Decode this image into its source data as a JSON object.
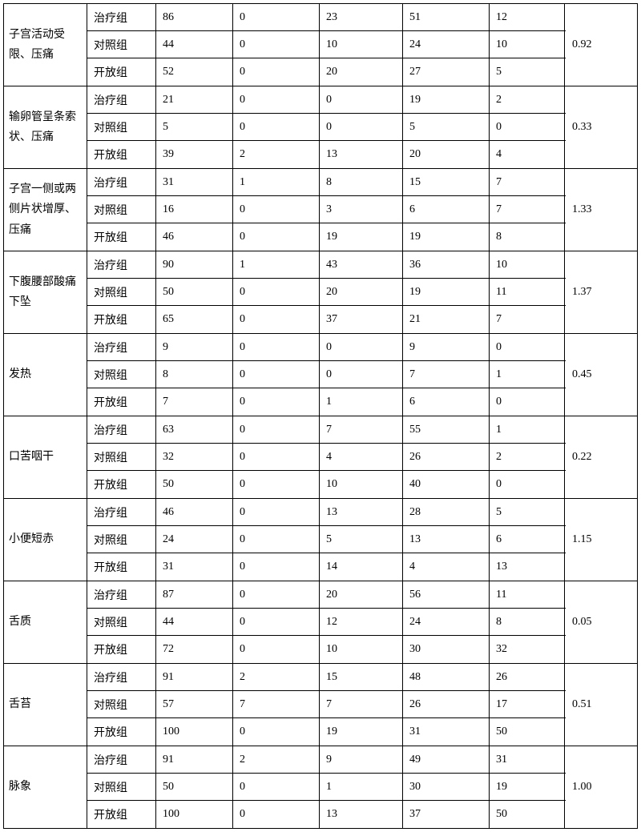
{
  "sections": [
    {
      "symptom": "子宫活动受限、压痛",
      "value": "0.92",
      "rows": [
        {
          "group": "治疗组",
          "d1": "86",
          "d2": "0",
          "d3": "23",
          "d4": "51",
          "d5": "12"
        },
        {
          "group": "对照组",
          "d1": "44",
          "d2": "0",
          "d3": "10",
          "d4": "24",
          "d5": "10"
        },
        {
          "group": "开放组",
          "d1": "52",
          "d2": "0",
          "d3": "20",
          "d4": "27",
          "d5": "5"
        }
      ]
    },
    {
      "symptom": "输卵管呈条索状、压痛",
      "value": "0.33",
      "rows": [
        {
          "group": "治疗组",
          "d1": "21",
          "d2": "0",
          "d3": "0",
          "d4": "19",
          "d5": "2"
        },
        {
          "group": "对照组",
          "d1": "5",
          "d2": "0",
          "d3": "0",
          "d4": "5",
          "d5": "0"
        },
        {
          "group": "开放组",
          "d1": "39",
          "d2": "2",
          "d3": "13",
          "d4": "20",
          "d5": "4"
        }
      ]
    },
    {
      "symptom": "子宫一侧或两侧片状增厚、压痛",
      "value": "1.33",
      "rows": [
        {
          "group": "治疗组",
          "d1": "31",
          "d2": "1",
          "d3": "8",
          "d4": "15",
          "d5": "7"
        },
        {
          "group": "对照组",
          "d1": "16",
          "d2": "0",
          "d3": "3",
          "d4": "6",
          "d5": "7"
        },
        {
          "group": "开放组",
          "d1": "46",
          "d2": "0",
          "d3": "19",
          "d4": "19",
          "d5": "8"
        }
      ]
    },
    {
      "symptom": "下腹腰部酸痛下坠",
      "value": "1.37",
      "rows": [
        {
          "group": "治疗组",
          "d1": "90",
          "d2": "1",
          "d3": "43",
          "d4": "36",
          "d5": "10"
        },
        {
          "group": "对照组",
          "d1": "50",
          "d2": "0",
          "d3": "20",
          "d4": "19",
          "d5": "11"
        },
        {
          "group": "开放组",
          "d1": "65",
          "d2": "0",
          "d3": "37",
          "d4": "21",
          "d5": "7"
        }
      ]
    },
    {
      "symptom": "发热",
      "value": "0.45",
      "rows": [
        {
          "group": "治疗组",
          "d1": "9",
          "d2": "0",
          "d3": "0",
          "d4": "9",
          "d5": "0"
        },
        {
          "group": "对照组",
          "d1": "8",
          "d2": "0",
          "d3": "0",
          "d4": "7",
          "d5": "1"
        },
        {
          "group": "开放组",
          "d1": "7",
          "d2": "0",
          "d3": "1",
          "d4": "6",
          "d5": "0"
        }
      ]
    },
    {
      "symptom": "口苦咽干",
      "value": "0.22",
      "rows": [
        {
          "group": "治疗组",
          "d1": "63",
          "d2": "0",
          "d3": "7",
          "d4": "55",
          "d5": "1"
        },
        {
          "group": "对照组",
          "d1": "32",
          "d2": "0",
          "d3": "4",
          "d4": "26",
          "d5": "2"
        },
        {
          "group": "开放组",
          "d1": "50",
          "d2": "0",
          "d3": "10",
          "d4": "40",
          "d5": "0"
        }
      ]
    },
    {
      "symptom": "小便短赤",
      "value": "1.15",
      "rows": [
        {
          "group": "治疗组",
          "d1": "46",
          "d2": "0",
          "d3": "13",
          "d4": "28",
          "d5": "5"
        },
        {
          "group": "对照组",
          "d1": "24",
          "d2": "0",
          "d3": "5",
          "d4": "13",
          "d5": "6"
        },
        {
          "group": "开放组",
          "d1": "31",
          "d2": "0",
          "d3": "14",
          "d4": "4",
          "d5": "13"
        }
      ]
    },
    {
      "symptom": "舌质",
      "value": "0.05",
      "rows": [
        {
          "group": "治疗组",
          "d1": "87",
          "d2": "0",
          "d3": "20",
          "d4": "56",
          "d5": "11"
        },
        {
          "group": "对照组",
          "d1": "44",
          "d2": "0",
          "d3": "12",
          "d4": "24",
          "d5": "8"
        },
        {
          "group": "开放组",
          "d1": "72",
          "d2": "0",
          "d3": "10",
          "d4": "30",
          "d5": "32"
        }
      ]
    },
    {
      "symptom": "舌苔",
      "value": "0.51",
      "rows": [
        {
          "group": "治疗组",
          "d1": "91",
          "d2": "2",
          "d3": "15",
          "d4": "48",
          "d5": "26"
        },
        {
          "group": "对照组",
          "d1": "57",
          "d2": "7",
          "d3": "7",
          "d4": "26",
          "d5": "17"
        },
        {
          "group": "开放组",
          "d1": "100",
          "d2": "0",
          "d3": "19",
          "d4": "31",
          "d5": "50"
        }
      ]
    },
    {
      "symptom": "脉象",
      "value": "1.00",
      "rows": [
        {
          "group": "治疗组",
          "d1": "91",
          "d2": "2",
          "d3": "9",
          "d4": "49",
          "d5": "31"
        },
        {
          "group": "对照组",
          "d1": "50",
          "d2": "0",
          "d3": "1",
          "d4": "30",
          "d5": "19"
        },
        {
          "group": "开放组",
          "d1": "100",
          "d2": "0",
          "d3": "13",
          "d4": "37",
          "d5": "50"
        }
      ]
    }
  ]
}
